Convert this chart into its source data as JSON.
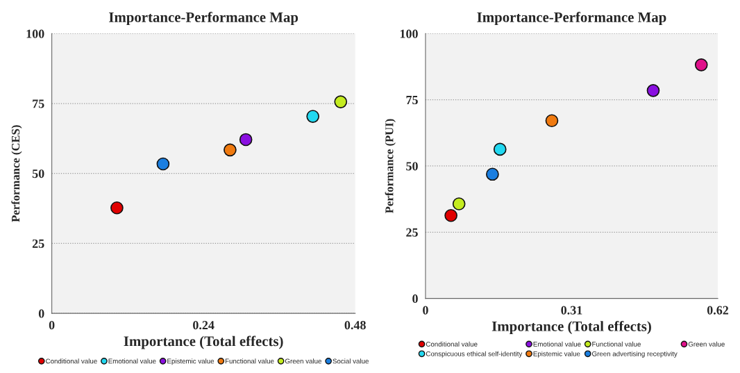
{
  "chart_data": [
    {
      "type": "scatter",
      "title": "Importance-Performance Map",
      "xlabel": "Importance (Total effects)",
      "ylabel": "Performance (CES)",
      "xlim": [
        0,
        0.48
      ],
      "xticks": [
        0,
        0.24,
        0.48
      ],
      "ylim": [
        0,
        100
      ],
      "yticks": [
        0,
        25,
        50,
        75,
        100
      ],
      "grid": "y",
      "legend": "bottom",
      "marker": "circle",
      "series": [
        {
          "name": "Conditional value",
          "color": "#e00000",
          "x": [
            0.103
          ],
          "values": [
            37.7
          ]
        },
        {
          "name": "Emotional value",
          "color": "#22d8f0",
          "x": [
            0.413
          ],
          "values": [
            70.4
          ]
        },
        {
          "name": "Epistemic value",
          "color": "#8a10e0",
          "x": [
            0.307
          ],
          "values": [
            62.1
          ]
        },
        {
          "name": "Functional value",
          "color": "#f07a10",
          "x": [
            0.282
          ],
          "values": [
            58.4
          ]
        },
        {
          "name": "Green value",
          "color": "#c4ec20",
          "x": [
            0.457
          ],
          "values": [
            75.6
          ]
        },
        {
          "name": "Social value",
          "color": "#1a7ee0",
          "x": [
            0.176
          ],
          "values": [
            53.4
          ]
        }
      ]
    },
    {
      "type": "scatter",
      "title": "Importance-Performance Map",
      "xlabel": "Importance (Total effects)",
      "ylabel": "Performance (PUI)",
      "xlim": [
        0,
        0.62
      ],
      "xticks": [
        0,
        0.31,
        0.62
      ],
      "ylim": [
        0,
        100
      ],
      "yticks": [
        0,
        25,
        50,
        75,
        100
      ],
      "grid": "y",
      "legend": "bottom",
      "marker": "circle",
      "series": [
        {
          "name": "Conditional value",
          "color": "#e00000",
          "x": [
            0.054
          ],
          "values": [
            31.3
          ]
        },
        {
          "name": "Conspicuous ethical self-identity",
          "color": "#22d8f0",
          "x": [
            0.158
          ],
          "values": [
            56.3
          ]
        },
        {
          "name": "Emotional value",
          "color": "#8a10e0",
          "x": [
            0.483
          ],
          "values": [
            78.5
          ]
        },
        {
          "name": "Epistemic value",
          "color": "#f07a10",
          "x": [
            0.268
          ],
          "values": [
            67.1
          ]
        },
        {
          "name": "Functional value",
          "color": "#c4ec20",
          "x": [
            0.071
          ],
          "values": [
            35.7
          ]
        },
        {
          "name": "Green advertising receptivity",
          "color": "#1a7ee0",
          "x": [
            0.142
          ],
          "values": [
            46.9
          ]
        },
        {
          "name": "Green value",
          "color": "#e0108a",
          "x": [
            0.585
          ],
          "values": [
            88.2
          ]
        }
      ]
    }
  ]
}
